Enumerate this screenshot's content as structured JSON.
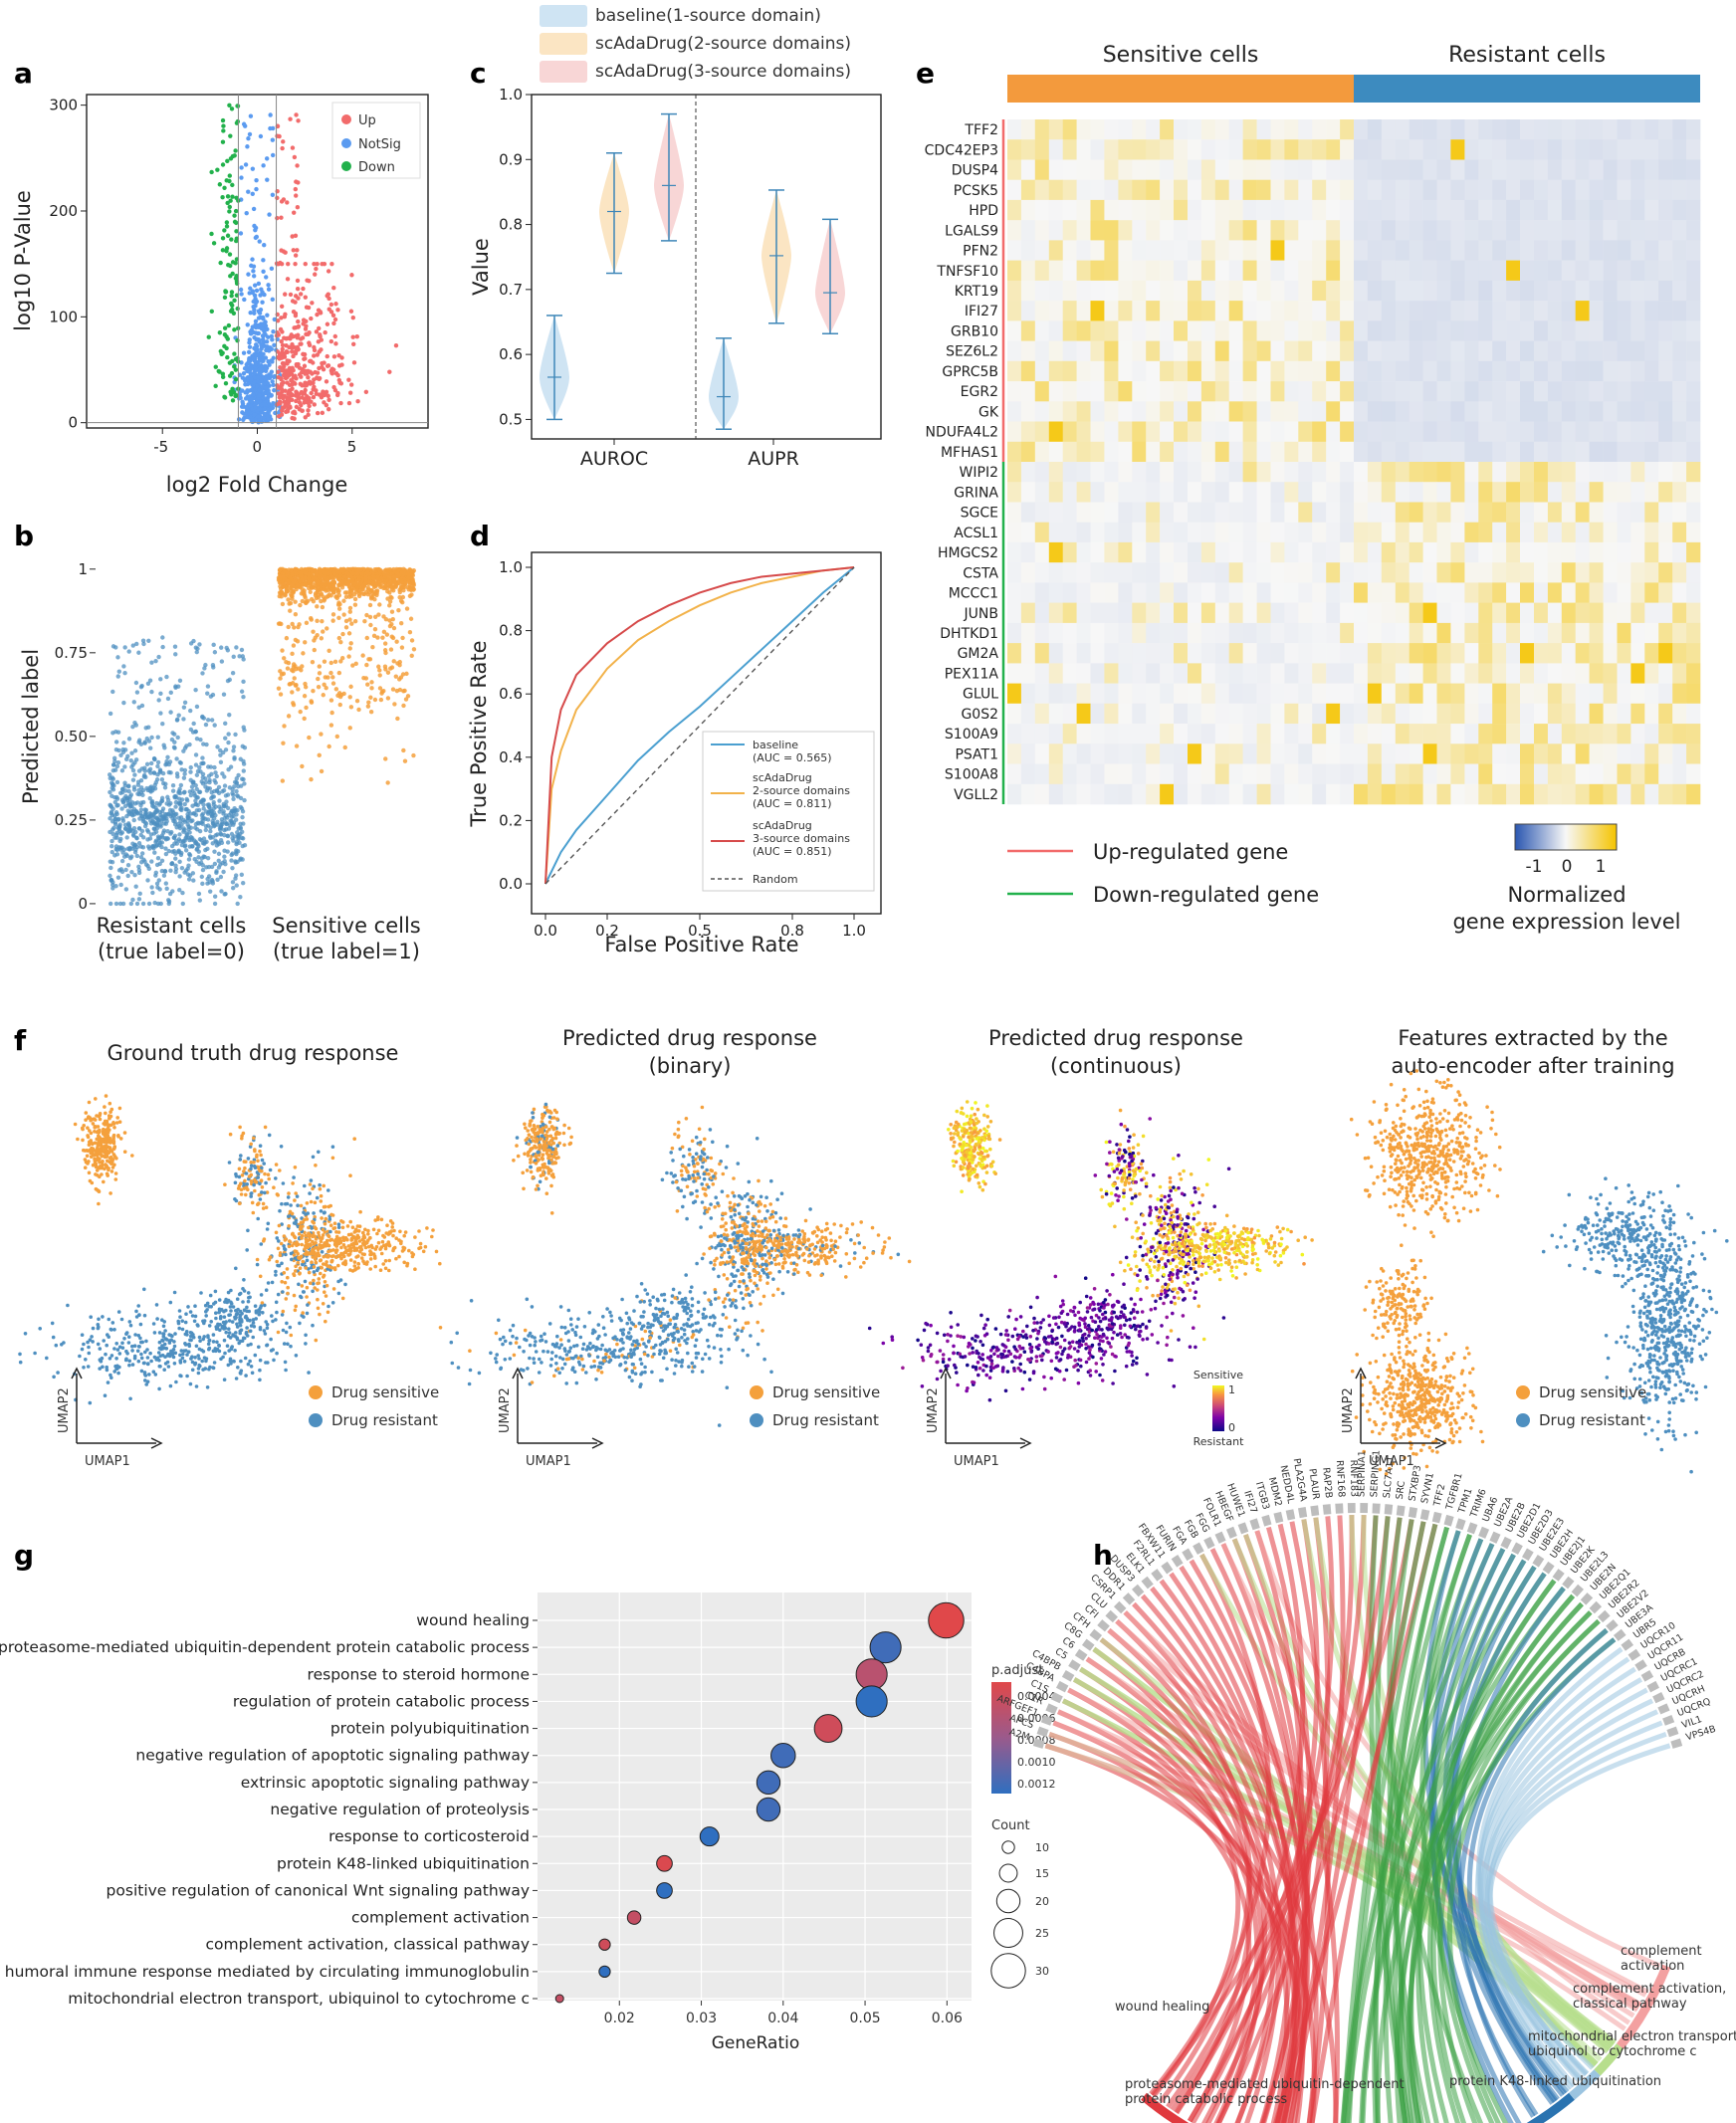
{
  "panel_letters": [
    "a",
    "b",
    "c",
    "d",
    "e",
    "f",
    "g",
    "h"
  ],
  "colors": {
    "up": "#f26b6b",
    "notsig": "#5b9bf0",
    "down": "#22b14c",
    "orange": "#f4a03c",
    "blue": "#4e8fc0",
    "baseline": "#4a9fd0",
    "two_source": "#f2b24a",
    "three_source": "#d64a4a",
    "heat_low": "#3a63b9",
    "heat_mid": "#f7f7f7",
    "heat_high": "#f5c400"
  },
  "chart_data": [
    {
      "id": "a",
      "type": "scatter",
      "xlabel": "log2 Fold Change",
      "ylabel": "log10 P-Value",
      "xlim": [
        -9,
        9
      ],
      "ylim": [
        -5,
        310
      ],
      "xticks": [
        "-5",
        "0",
        "5"
      ],
      "yticks": [
        "0",
        "100",
        "200",
        "300"
      ],
      "legend": [
        "Up",
        "NotSig",
        "Down"
      ],
      "thresholds": {
        "log2fc": [
          -1,
          1
        ]
      }
    },
    {
      "id": "b",
      "type": "scatter",
      "ylabel": "Predicted label",
      "categories": [
        "Resistant cells\n(true label=0)",
        "Sensitive cells\n(true label=1)"
      ],
      "category_lines": [
        [
          "Resistant cells",
          "(true label=0)"
        ],
        [
          "Sensitive cells",
          "(true label=1)"
        ]
      ],
      "yticks": [
        "0",
        "0.25",
        "0.50",
        "0.75",
        "1"
      ],
      "ylim": [
        -0.03,
        1.05
      ],
      "approx_median": [
        0.25,
        0.98
      ]
    },
    {
      "id": "c",
      "type": "violin",
      "ylabel": "Value",
      "categories": [
        "AUROC",
        "AUPR"
      ],
      "ylim": [
        0.47,
        1.0
      ],
      "yticks": [
        "0.5",
        "0.6",
        "0.7",
        "0.8",
        "0.9",
        "1.0"
      ],
      "legend": [
        "baseline(1-source domain)",
        "scAdaDrug(2-source domains)",
        "scAdaDrug(3-source domains)"
      ],
      "series": [
        {
          "name": "baseline(1-source domain)",
          "AUROC": {
            "min": 0.5,
            "median": 0.565,
            "max": 0.66
          },
          "AUPR": {
            "min": 0.485,
            "median": 0.535,
            "max": 0.625
          }
        },
        {
          "name": "scAdaDrug(2-source domains)",
          "AUROC": {
            "min": 0.725,
            "median": 0.82,
            "max": 0.91
          },
          "AUPR": {
            "min": 0.648,
            "median": 0.752,
            "max": 0.853
          }
        },
        {
          "name": "scAdaDrug(3-source domains)",
          "AUROC": {
            "min": 0.775,
            "median": 0.86,
            "max": 0.97
          },
          "AUPR": {
            "min": 0.632,
            "median": 0.695,
            "max": 0.808
          }
        }
      ]
    },
    {
      "id": "d",
      "type": "line",
      "xlabel": "False Positive Rate",
      "ylabel": "True Positive Rate",
      "xlim": [
        0,
        1
      ],
      "ylim": [
        0,
        1
      ],
      "xticks": [
        "0.0",
        "0.2",
        "0.5",
        "0.8",
        "1.0"
      ],
      "yticks": [
        "0.0",
        "0.2",
        "0.4",
        "0.6",
        "0.8",
        "1.0"
      ],
      "series": [
        {
          "name": "baseline",
          "label_lines": [
            "baseline",
            "(AUC = 0.565)"
          ],
          "auc": 0.565,
          "x": [
            0,
            0.05,
            0.1,
            0.2,
            0.3,
            0.4,
            0.5,
            0.6,
            0.7,
            0.8,
            0.9,
            1.0
          ],
          "y": [
            0,
            0.1,
            0.17,
            0.28,
            0.39,
            0.48,
            0.56,
            0.65,
            0.74,
            0.83,
            0.92,
            1.0
          ]
        },
        {
          "name": "scAdaDrug 2-source domains",
          "label_lines": [
            "scAdaDrug",
            "2-source domains",
            "(AUC = 0.811)"
          ],
          "auc": 0.811,
          "x": [
            0,
            0.02,
            0.05,
            0.1,
            0.2,
            0.3,
            0.4,
            0.5,
            0.6,
            0.7,
            0.8,
            0.9,
            1.0
          ],
          "y": [
            0,
            0.3,
            0.42,
            0.55,
            0.68,
            0.77,
            0.83,
            0.88,
            0.92,
            0.95,
            0.97,
            0.99,
            1.0
          ]
        },
        {
          "name": "scAdaDrug 3-source domains",
          "label_lines": [
            "scAdaDrug",
            "3-source domains",
            "(AUC = 0.851)"
          ],
          "auc": 0.851,
          "x": [
            0,
            0.02,
            0.05,
            0.1,
            0.2,
            0.3,
            0.4,
            0.5,
            0.6,
            0.7,
            0.8,
            0.9,
            1.0
          ],
          "y": [
            0,
            0.4,
            0.55,
            0.66,
            0.76,
            0.83,
            0.88,
            0.92,
            0.95,
            0.97,
            0.98,
            0.99,
            1.0
          ]
        },
        {
          "name": "Random",
          "label_lines": [
            "Random"
          ],
          "x": [
            0,
            1
          ],
          "y": [
            0,
            1
          ]
        }
      ]
    },
    {
      "id": "e",
      "type": "heatmap",
      "column_groups": [
        "Sensitive cells",
        "Resistant cells"
      ],
      "genes": [
        "TFF2",
        "CDC42EP3",
        "DUSP4",
        "PCSK5",
        "HPD",
        "LGALS9",
        "PFN2",
        "TNFSF10",
        "KRT19",
        "IFI27",
        "GRB10",
        "SEZ6L2",
        "GPRC5B",
        "EGR2",
        "GK",
        "NDUFA4L2",
        "MFHAS1",
        "WIPI2",
        "GRINA",
        "SGCE",
        "ACSL1",
        "HMGCS2",
        "CSTA",
        "MCCC1",
        "JUNB",
        "DHTKD1",
        "GM2A",
        "PEX11A",
        "GLUL",
        "G0S2",
        "S100A9",
        "PSAT1",
        "S100A8",
        "VGLL2"
      ],
      "up_regulated_count": 17,
      "legend": [
        "Up-regulated gene",
        "Down-regulated gene"
      ],
      "colorbar": {
        "ticks": [
          "-1",
          "0",
          "1"
        ],
        "title_lines": [
          "Normalized",
          "gene expression level"
        ]
      }
    },
    {
      "id": "f",
      "type": "scatter",
      "panels": [
        {
          "title_lines": [
            "Ground truth drug response"
          ],
          "mode": "binary"
        },
        {
          "title_lines": [
            "Predicted drug response",
            "(binary)"
          ],
          "mode": "binary"
        },
        {
          "title_lines": [
            "Predicted drug response",
            "(continuous)"
          ],
          "mode": "continuous"
        },
        {
          "title_lines": [
            "Features extracted by the",
            "auto-encoder after training"
          ],
          "mode": "features"
        }
      ],
      "xlabel": "UMAP1",
      "ylabel": "UMAP2",
      "legend": [
        "Drug sensitive",
        "Drug resistant"
      ],
      "colorbar": {
        "top_label": "Sensitive",
        "bottom_label": "Resistant",
        "ticks": [
          "1",
          "0"
        ]
      }
    },
    {
      "id": "g",
      "type": "scatter",
      "xlabel": "GeneRatio",
      "xlim": [
        0.01,
        0.063
      ],
      "xticks": [
        "0.02",
        "0.03",
        "0.04",
        "0.05",
        "0.06"
      ],
      "terms": [
        {
          "term": "wound healing",
          "x": 0.0599,
          "count": 31,
          "padj": 5e-05
        },
        {
          "term": "proteasome-mediated ubiquitin-dependent protein catabolic process",
          "x": 0.0525,
          "count": 27,
          "padj": 0.0012
        },
        {
          "term": "response to steroid hormone",
          "x": 0.0508,
          "count": 27,
          "padj": 0.0004
        },
        {
          "term": "regulation of protein catabolic process",
          "x": 0.0508,
          "count": 27,
          "padj": 0.0013
        },
        {
          "term": "protein polyubiquitination",
          "x": 0.0455,
          "count": 24,
          "padj": 0.0002
        },
        {
          "term": "negative regulation of apoptotic signaling pathway",
          "x": 0.04,
          "count": 21,
          "padj": 0.0012
        },
        {
          "term": "extrinsic apoptotic signaling pathway",
          "x": 0.0382,
          "count": 20,
          "padj": 0.0012
        },
        {
          "term": "negative regulation of proteolysis",
          "x": 0.0382,
          "count": 20,
          "padj": 0.0012
        },
        {
          "term": "response to corticosteroid",
          "x": 0.031,
          "count": 16,
          "padj": 0.0013
        },
        {
          "term": "protein K48-linked ubiquitination",
          "x": 0.0255,
          "count": 13,
          "padj": 0.0001
        },
        {
          "term": "positive regulation of canonical Wnt signaling pathway",
          "x": 0.0255,
          "count": 13,
          "padj": 0.0013
        },
        {
          "term": "complement activation",
          "x": 0.0218,
          "count": 11,
          "padj": 0.0003
        },
        {
          "term": "complement activation, classical pathway",
          "x": 0.0182,
          "count": 9,
          "padj": 0.0002
        },
        {
          "term": "humoral immune response mediated by circulating immunoglobulin",
          "x": 0.0182,
          "count": 9,
          "padj": 0.0013
        },
        {
          "term": "mitochondrial electron transport, ubiquinol to cytochrome c",
          "x": 0.0127,
          "count": 6,
          "padj": 0.0003
        }
      ],
      "padj_legend": {
        "title": "p.adjust",
        "ticks": [
          "0.0004",
          "0.0006",
          "0.0008",
          "0.0010",
          "0.0012"
        ]
      },
      "count_legend": {
        "title": "Count",
        "ticks": [
          "10",
          "15",
          "20",
          "25",
          "30"
        ]
      }
    },
    {
      "id": "h",
      "type": "chord",
      "genes": [
        "A2M",
        "APCS",
        "ARFGEF1",
        "C1R",
        "C1S",
        "C4BPA",
        "C4BPB",
        "C5",
        "C6",
        "C8G",
        "CFH",
        "CFI",
        "CLU",
        "CSRP1",
        "DDR1",
        "DUSP3",
        "ELK1",
        "F2RL1",
        "FBXW11",
        "FURIN",
        "FGA",
        "FGB",
        "FGG",
        "FOLR1",
        "HBEGF",
        "HUWE1",
        "IFI27",
        "ITGB3",
        "MDM2",
        "NEDD4L",
        "PLA2G4A",
        "PLAUR",
        "RAP2B",
        "RNF168",
        "RNF183",
        "SERPINA1",
        "SERPING1",
        "SLC7A11",
        "SRC",
        "STXBP3",
        "SYVN1",
        "TFF2",
        "TGFBR1",
        "TPM1",
        "TRIM6",
        "UBA6",
        "UBE2A",
        "UBE2B",
        "UBE2D1",
        "UBE2D3",
        "UBE2E3",
        "UBE2H",
        "UBE2J1",
        "UBE2K",
        "UBE2L3",
        "UBE2N",
        "UBE2Q1",
        "UBE2R2",
        "UBE2V2",
        "UBE3A",
        "UBR5",
        "UQCR10",
        "UQCR11",
        "UQCRB",
        "UQCRC1",
        "UQCRC2",
        "UQCRH",
        "UQCRQ",
        "VIL1",
        "VPS4B"
      ],
      "terms": [
        "wound healing",
        "proteasome-mediated ubiquitin-dependent protein catabolic process",
        "protein K48-linked ubiquitination",
        "mitochondrial electron transport, ubiquinol to cytochrome c",
        "complement activation, classical pathway",
        "complement activation"
      ],
      "term_lines": [
        [
          "wound healing"
        ],
        [
          "proteasome-mediated ubiquitin-dependent",
          "protein catabolic process"
        ],
        [
          "protein K48-linked ubiquitination"
        ],
        [
          "mitochondrial electron transport,",
          "ubiquinol to cytochrome c"
        ],
        [
          "complement activation,",
          "classical pathway"
        ],
        [
          "complement",
          "activation"
        ]
      ],
      "term_colors": [
        "#e0393e",
        "#3aa043",
        "#2a73b0",
        "#9bc4e0",
        "#b7de8c",
        "#f3a0a0"
      ]
    }
  ]
}
